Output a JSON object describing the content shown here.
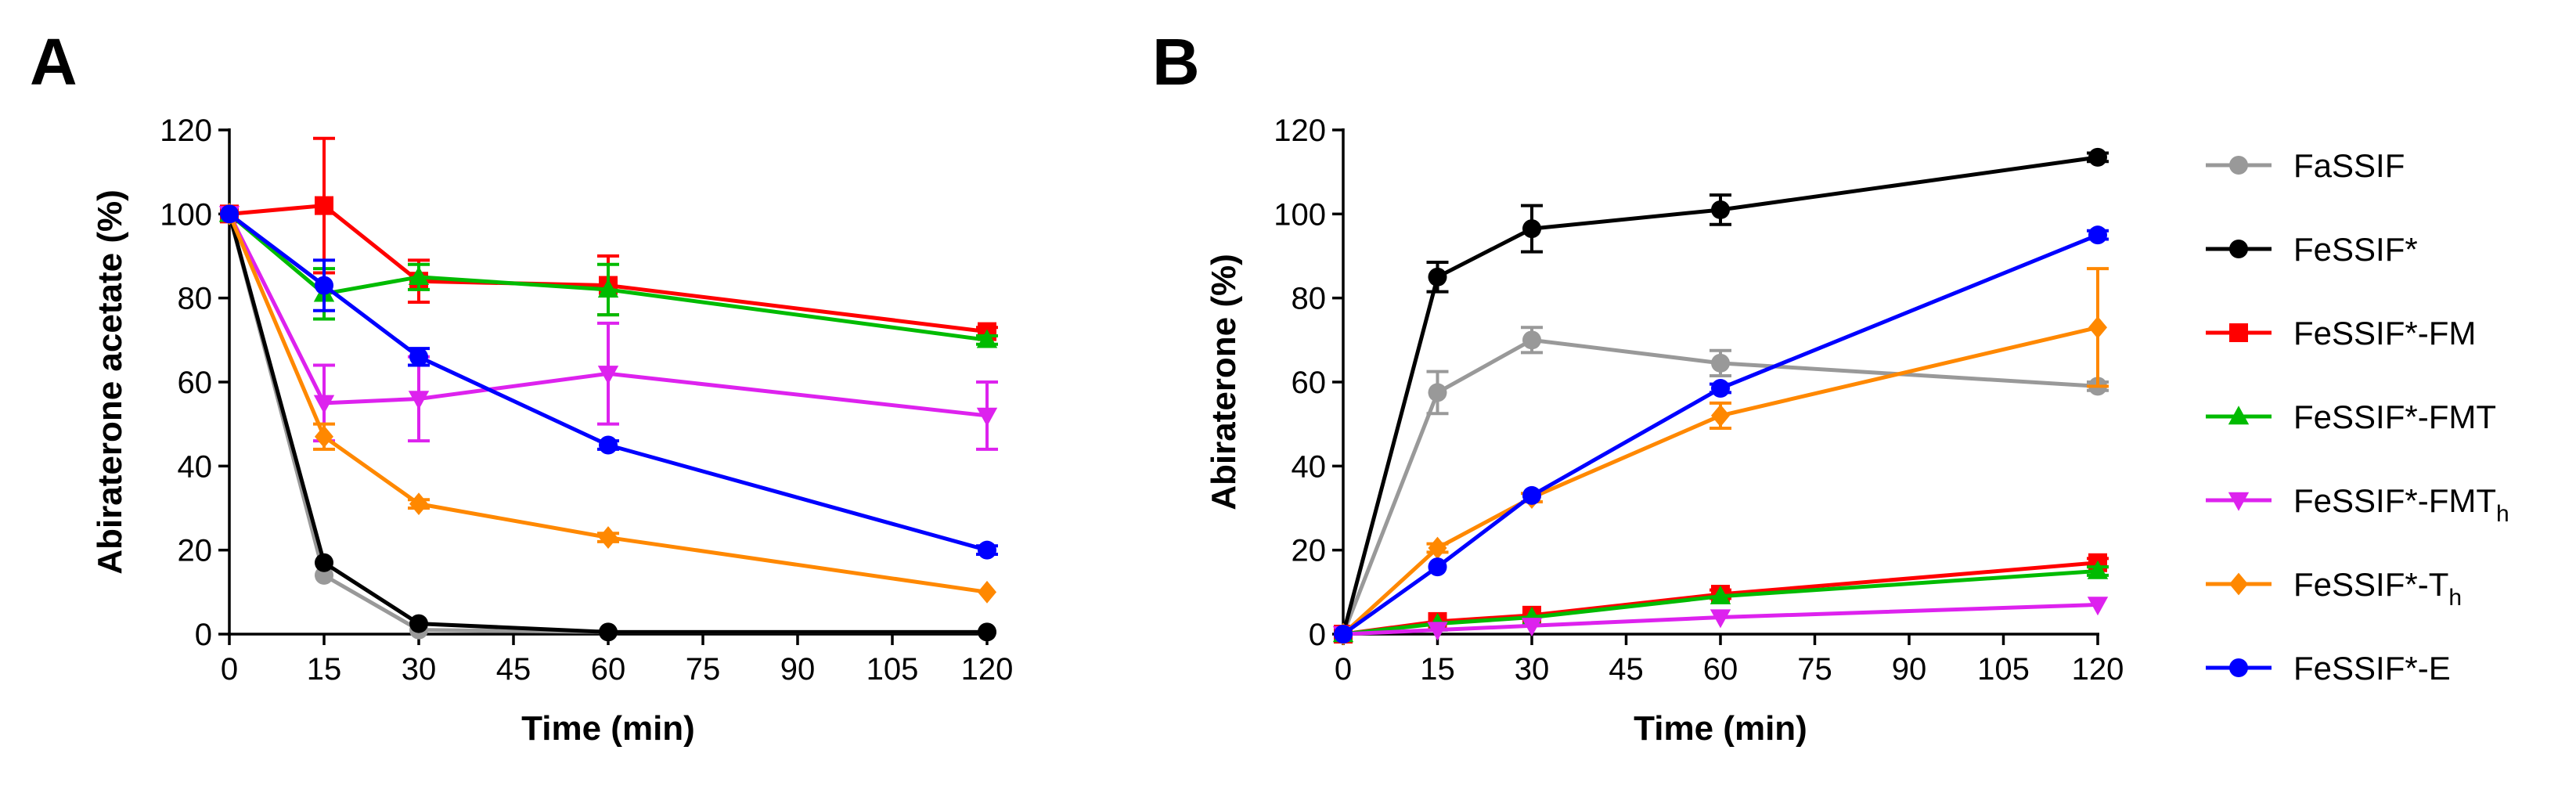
{
  "chart_data": [
    {
      "panel": "A",
      "type": "line",
      "title": "",
      "xlabel": "Time (min)",
      "ylabel": "Abiraterone acetate (%)",
      "x": [
        0,
        15,
        30,
        60,
        120
      ],
      "xticks": [
        "0",
        "15",
        "30",
        "45",
        "60",
        "75",
        "90",
        "105",
        "120"
      ],
      "xtick_values": [
        0,
        15,
        30,
        45,
        60,
        75,
        90,
        105,
        120
      ],
      "yticks": [
        "0",
        "20",
        "40",
        "60",
        "80",
        "100",
        "120"
      ],
      "ytick_values": [
        0,
        20,
        40,
        60,
        80,
        100,
        120
      ],
      "xlim": [
        0,
        120
      ],
      "ylim": [
        0,
        120
      ],
      "series": [
        {
          "key": "fassif",
          "name": "FaSSIF",
          "values": [
            100,
            14,
            1,
            0.5,
            0.5
          ],
          "errors": [
            0,
            0,
            0,
            0,
            0
          ]
        },
        {
          "key": "fessif",
          "name": "FeSSIF*",
          "values": [
            100,
            17,
            2.5,
            0.5,
            0.5
          ],
          "errors": [
            0,
            0,
            0,
            0,
            0
          ]
        },
        {
          "key": "fm",
          "name": "FeSSIF*-FM",
          "values": [
            100,
            102,
            84,
            83,
            72
          ],
          "errors": [
            0,
            16,
            5,
            7,
            1
          ]
        },
        {
          "key": "fmt",
          "name": "FeSSIF*-FMT",
          "values": [
            100,
            81,
            85,
            82,
            70
          ],
          "errors": [
            0,
            6,
            3,
            6,
            1
          ]
        },
        {
          "key": "fmth",
          "name": "FeSSIF*-FMTh",
          "values": [
            100,
            55,
            56,
            62,
            52
          ],
          "errors": [
            0,
            9,
            10,
            12,
            8
          ]
        },
        {
          "key": "th",
          "name": "FeSSIF*-Th",
          "values": [
            100,
            47,
            31,
            23,
            10
          ],
          "errors": [
            0,
            3,
            1,
            1,
            0.5
          ]
        },
        {
          "key": "e",
          "name": "FeSSIF*-E",
          "values": [
            100,
            83,
            66,
            45,
            20
          ],
          "errors": [
            0,
            6,
            2,
            1,
            1
          ]
        }
      ]
    },
    {
      "panel": "B",
      "type": "line",
      "title": "",
      "xlabel": "Time (min)",
      "ylabel": "Abiraterone (%)",
      "x": [
        0,
        15,
        30,
        60,
        120
      ],
      "xticks": [
        "0",
        "15",
        "30",
        "45",
        "60",
        "75",
        "90",
        "105",
        "120"
      ],
      "xtick_values": [
        0,
        15,
        30,
        45,
        60,
        75,
        90,
        105,
        120
      ],
      "yticks": [
        "0",
        "20",
        "40",
        "60",
        "80",
        "100",
        "120"
      ],
      "ytick_values": [
        0,
        20,
        40,
        60,
        80,
        100,
        120
      ],
      "xlim": [
        0,
        120
      ],
      "ylim": [
        0,
        120
      ],
      "series": [
        {
          "key": "fassif",
          "name": "FaSSIF",
          "values": [
            0,
            57.5,
            70,
            64.5,
            59
          ],
          "errors": [
            0,
            5,
            3,
            3,
            1
          ]
        },
        {
          "key": "fessif",
          "name": "FeSSIF*",
          "values": [
            0,
            85,
            96.5,
            101,
            113.5
          ],
          "errors": [
            0,
            3.5,
            5.5,
            3.5,
            1
          ]
        },
        {
          "key": "fm",
          "name": "FeSSIF*-FM",
          "values": [
            0,
            3,
            4.5,
            9.5,
            17
          ],
          "errors": [
            0,
            0.5,
            0.5,
            1,
            1
          ]
        },
        {
          "key": "fmt",
          "name": "FeSSIF*-FMT",
          "values": [
            0,
            2.5,
            4,
            9,
            15
          ],
          "errors": [
            0,
            0.5,
            0.5,
            0.5,
            1
          ]
        },
        {
          "key": "fmth",
          "name": "FeSSIF*-FMTh",
          "values": [
            0,
            1,
            2,
            4,
            7
          ],
          "errors": [
            0,
            0.5,
            0.5,
            0.5,
            0.5
          ]
        },
        {
          "key": "th",
          "name": "FeSSIF*-Th",
          "values": [
            0,
            20.5,
            32.5,
            52,
            73
          ],
          "errors": [
            0,
            1,
            1,
            3,
            14
          ]
        },
        {
          "key": "e",
          "name": "FeSSIF*-E",
          "values": [
            0,
            16,
            33,
            58.5,
            95
          ],
          "errors": [
            0,
            0.5,
            0.5,
            1,
            1
          ]
        }
      ]
    }
  ],
  "panel_labels": {
    "a": "A",
    "b": "B"
  },
  "legend": {
    "position": "right of panel B",
    "items": [
      {
        "key": "fassif",
        "base": "FaSSIF",
        "sub": "",
        "color": "#999999",
        "marker": "circle"
      },
      {
        "key": "fessif",
        "base": "FeSSIF*",
        "sub": "",
        "color": "#000000",
        "marker": "circle"
      },
      {
        "key": "fm",
        "base": "FeSSIF*-FM",
        "sub": "",
        "color": "#ff0000",
        "marker": "square"
      },
      {
        "key": "fmt",
        "base": "FeSSIF*-FMT",
        "sub": "",
        "color": "#00bb00",
        "marker": "triangle-up"
      },
      {
        "key": "fmth",
        "base": "FeSSIF*-FMT",
        "sub": "h",
        "color": "#dd22ee",
        "marker": "triangle-down"
      },
      {
        "key": "th",
        "base": "FeSSIF*-T",
        "sub": "h",
        "color": "#ff8800",
        "marker": "diamond"
      },
      {
        "key": "e",
        "base": "FeSSIF*-E",
        "sub": "",
        "color": "#0000ff",
        "marker": "circle"
      }
    ]
  }
}
